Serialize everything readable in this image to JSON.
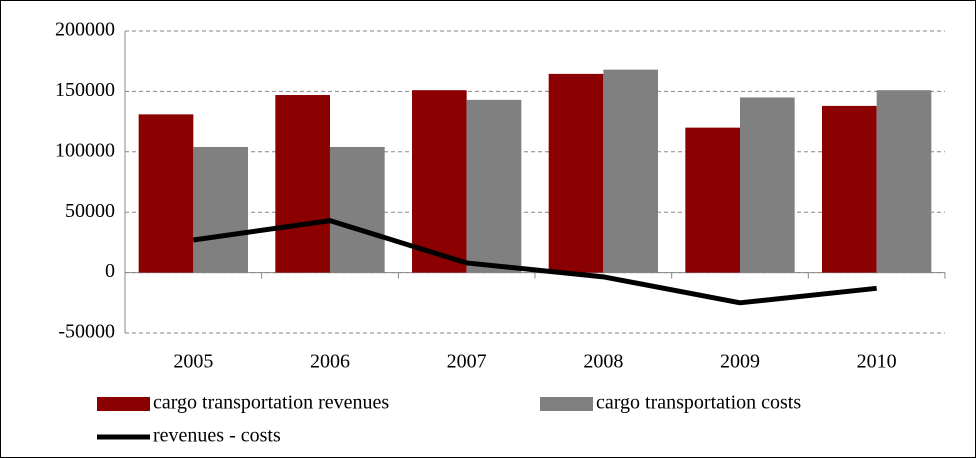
{
  "chart_data": {
    "type": "bar",
    "categories": [
      "2005",
      "2006",
      "2007",
      "2008",
      "2009",
      "2010"
    ],
    "series": [
      {
        "name": "cargo transportation revenues",
        "color": "#8b0000",
        "values": [
          131000,
          147000,
          151000,
          164500,
          120000,
          138000
        ]
      },
      {
        "name": "cargo transportation costs",
        "color": "#808080",
        "values": [
          104000,
          104000,
          143000,
          168000,
          145000,
          151000
        ]
      },
      {
        "name": "revenues - costs",
        "color": "#000000",
        "type": "line",
        "values": [
          27000,
          43000,
          8000,
          -3500,
          -25000,
          -13000
        ]
      }
    ],
    "ylim": [
      -50000,
      200000
    ],
    "yticks": [
      -50000,
      0,
      50000,
      100000,
      150000,
      200000
    ],
    "grid": true
  }
}
